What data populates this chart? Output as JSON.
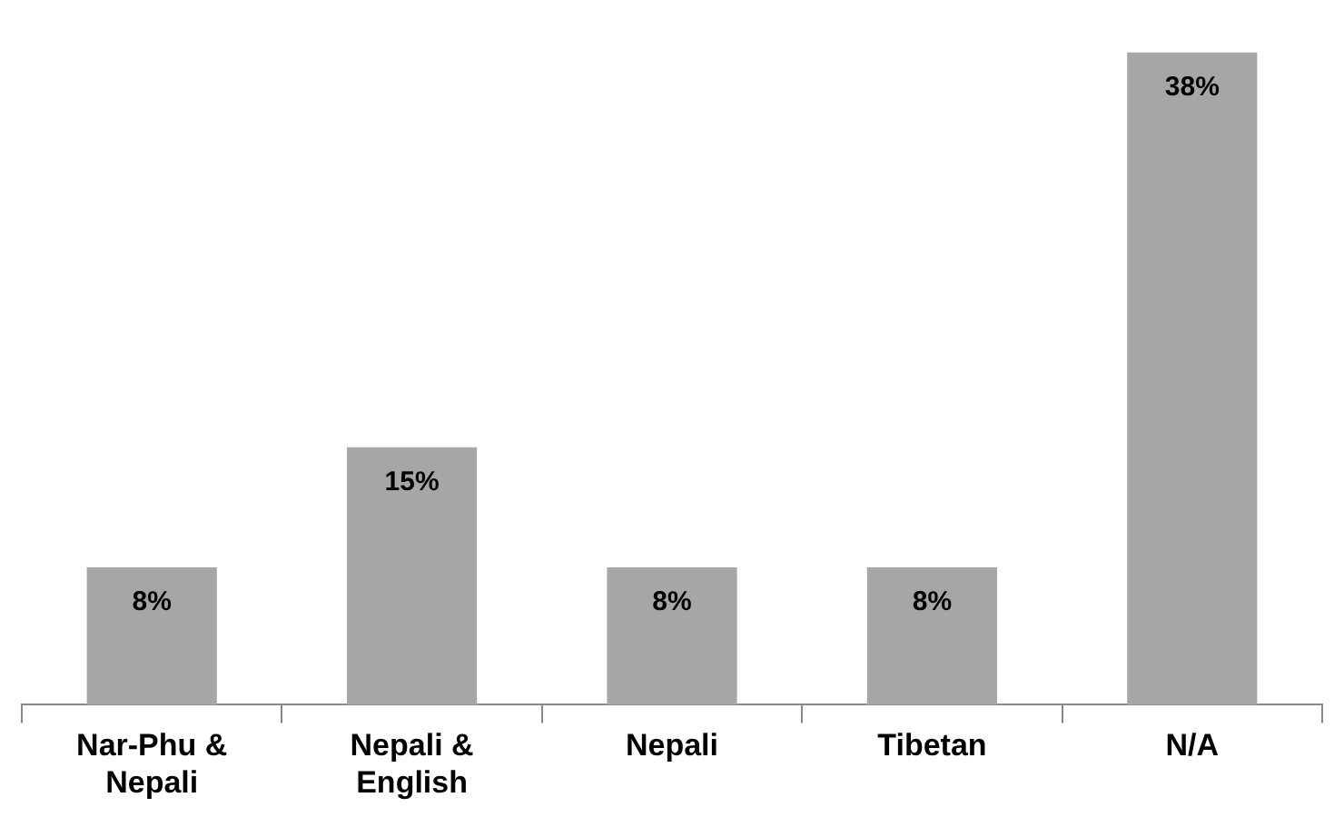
{
  "chart_data": {
    "type": "bar",
    "categories": [
      "Nar-Phu & Nepali",
      "Nepali & English",
      "Nepali",
      "Tibetan",
      "N/A"
    ],
    "values": [
      8,
      15,
      8,
      8,
      38
    ],
    "color": "#a6a6a6",
    "value_labels": [
      "8%",
      "15%",
      "8%",
      "8%",
      "38%"
    ]
  }
}
